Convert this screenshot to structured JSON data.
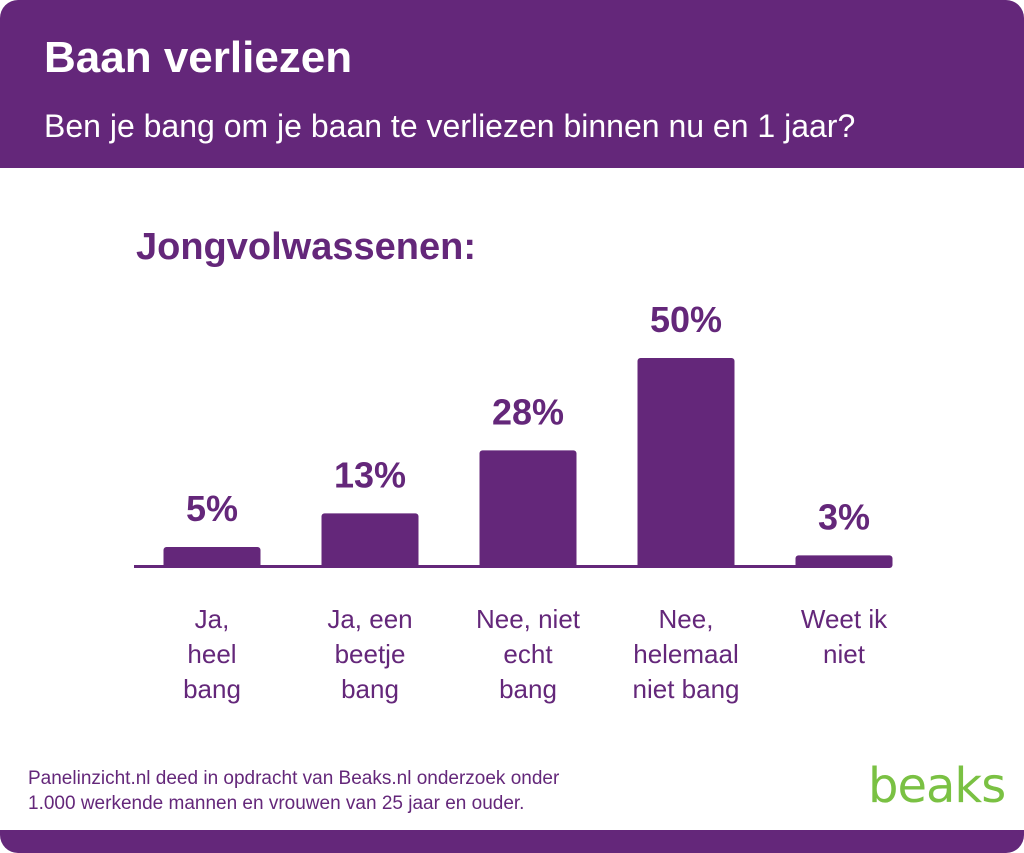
{
  "header": {
    "title": "Baan verliezen",
    "subtitle": "Ben je bang om je baan te verliezen binnen nu en 1 jaar?"
  },
  "chart_data": {
    "type": "bar",
    "title": "Jongvolwassenen:",
    "categories": [
      [
        "Ja,",
        "heel",
        "bang"
      ],
      [
        "Ja, een",
        "beetje",
        "bang"
      ],
      [
        "Nee, niet",
        "echt",
        "bang"
      ],
      [
        "Nee,",
        "helemaal",
        "niet bang"
      ],
      [
        "Weet ik",
        "niet"
      ]
    ],
    "values": [
      5,
      13,
      28,
      50,
      3
    ],
    "value_labels": [
      "5%",
      "13%",
      "28%",
      "50%",
      "3%"
    ],
    "unit": "%",
    "ylim": [
      0,
      50
    ],
    "grid": false,
    "legend": "none",
    "bar_color": "#64277a"
  },
  "footer": {
    "note_lines": [
      "Panelinzicht.nl deed in opdracht van Beaks.nl onderzoek onder",
      "1.000 werkende mannen en vrouwen van 25 jaar en ouder."
    ],
    "logo_text": "beaks"
  },
  "colors": {
    "brand_purple": "#64277a",
    "logo_green": "#7ac143",
    "background": "#ffffff"
  }
}
